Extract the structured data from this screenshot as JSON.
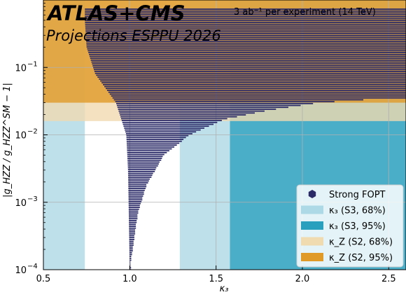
{
  "chart_data": {
    "type": "scatter",
    "title": "ATLAS+CMS",
    "subtitle": "Projections ESPPU 2026",
    "annotation": "3 ab⁻¹  per experiment (14 TeV)",
    "xlabel": "κ₃",
    "ylabel": "|g_HZZ / g_HZZ^SM − 1|",
    "xlim": [
      0.5,
      2.6
    ],
    "ylim": [
      0.0001,
      1
    ],
    "yscale": "log",
    "grid": true,
    "legend_position": "bottom-right",
    "x_ticks": [
      {
        "value": 0.5,
        "label": "0.5"
      },
      {
        "value": 1.0,
        "label": "1.0"
      },
      {
        "value": 1.5,
        "label": "1.5"
      },
      {
        "value": 2.0,
        "label": "2.0"
      },
      {
        "value": 2.5,
        "label": "2.5"
      }
    ],
    "y_ticks": [
      {
        "value": 0.0001,
        "base": "10",
        "exp": "−4"
      },
      {
        "value": 0.001,
        "base": "10",
        "exp": "−3"
      },
      {
        "value": 0.01,
        "base": "10",
        "exp": "−2"
      },
      {
        "value": 0.1,
        "base": "10",
        "exp": "−1"
      }
    ],
    "bands": [
      {
        "name": "κ₃ (S3, 95%)",
        "axis": "x",
        "range": [
          1.58,
          2.6
        ],
        "ranges_excluded": true,
        "color": "#2aa0bf",
        "opacity": 0.85
      },
      {
        "name": "κ₃ (S3, 68%)",
        "axis": "x",
        "range": [
          0.74,
          1.29
        ],
        "color": "#add8e6",
        "opacity": 0.8
      },
      {
        "name": "κ_Z (S2, 95%)",
        "axis": "y",
        "threshold": 0.03,
        "color": "#e09a28",
        "opacity": 0.8
      },
      {
        "name": "κ_Z (S2, 68%)",
        "axis": "y",
        "threshold": 0.016,
        "color": "#f0dab0",
        "opacity": 0.8
      }
    ],
    "series": [
      {
        "name": "Strong FOPT",
        "color": "#2b2a68",
        "boundary": {
          "lower_edge": [
            {
              "x": 1.0,
              "y": 9e-05
            },
            {
              "x": 1.05,
              "y": 0.0007
            },
            {
              "x": 1.1,
              "y": 0.0018
            },
            {
              "x": 1.2,
              "y": 0.005
            },
            {
              "x": 1.35,
              "y": 0.01
            },
            {
              "x": 1.55,
              "y": 0.017
            },
            {
              "x": 1.8,
              "y": 0.023
            },
            {
              "x": 2.1,
              "y": 0.03
            },
            {
              "x": 2.5,
              "y": 0.035
            }
          ],
          "upper_left_edge": [
            {
              "x": 1.0,
              "y": 0.0001
            },
            {
              "x": 0.99,
              "y": 0.003
            },
            {
              "x": 0.98,
              "y": 0.01
            },
            {
              "x": 0.92,
              "y": 0.03
            },
            {
              "x": 0.8,
              "y": 0.08
            },
            {
              "x": 0.75,
              "y": 0.2
            },
            {
              "x": 0.74,
              "y": 0.5
            }
          ]
        }
      }
    ],
    "legend": [
      {
        "label": "Strong FOPT",
        "kind": "marker",
        "color": "#2b2a68"
      },
      {
        "label": "κ₃  (S3, 68%)",
        "kind": "patch",
        "color": "#add8e6"
      },
      {
        "label": "κ₃  (S3, 95%)",
        "kind": "patch",
        "color": "#2aa0bf"
      },
      {
        "label": "κ_Z  (S2, 68%)",
        "kind": "patch",
        "color": "#f0dab0"
      },
      {
        "label": "κ_Z  (S2, 95%)",
        "kind": "patch",
        "color": "#e09a28"
      }
    ]
  }
}
